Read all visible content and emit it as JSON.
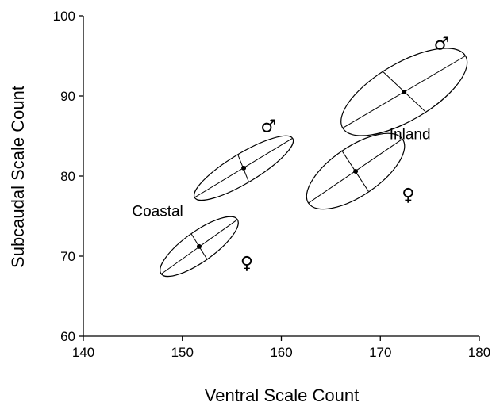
{
  "chart_data": {
    "type": "scatter",
    "xlabel": "Ventral Scale Count",
    "ylabel": "Subcaudal Scale Count",
    "xlim": [
      140,
      180
    ],
    "ylim": [
      60,
      100
    ],
    "xticks": [
      140,
      150,
      160,
      170,
      180
    ],
    "yticks": [
      60,
      70,
      80,
      90,
      100
    ],
    "x_tick_labels": [
      "140",
      "150",
      "160",
      "170",
      "180"
    ],
    "y_tick_labels": [
      "60",
      "70",
      "80",
      "90",
      "100"
    ],
    "grid": false,
    "series": [
      {
        "population": "Coastal",
        "sex_symbol": "♀",
        "centroid": [
          151.7,
          71.2
        ],
        "major_axis": [
          [
            147.9,
            67.8
          ],
          [
            155.6,
            74.6
          ]
        ],
        "minor_axis": [
          [
            150.9,
            72.8
          ],
          [
            152.5,
            69.6
          ]
        ]
      },
      {
        "population": "Coastal",
        "sex_symbol": "♂",
        "centroid": [
          156.2,
          81.0
        ],
        "major_axis": [
          [
            151.2,
            77.3
          ],
          [
            161.1,
            84.7
          ]
        ],
        "minor_axis": [
          [
            155.6,
            82.7
          ],
          [
            156.7,
            79.3
          ]
        ]
      },
      {
        "population": "Inland",
        "sex_symbol": "♀",
        "centroid": [
          167.5,
          80.6
        ],
        "major_axis": [
          [
            162.7,
            76.6
          ],
          [
            172.2,
            84.6
          ]
        ],
        "minor_axis": [
          [
            166.1,
            83.2
          ],
          [
            168.8,
            78.1
          ]
        ]
      },
      {
        "population": "Inland",
        "sex_symbol": "♂",
        "centroid": [
          172.4,
          90.5
        ],
        "major_axis": [
          [
            166.2,
            86.0
          ],
          [
            178.6,
            95.0
          ]
        ],
        "minor_axis": [
          [
            170.3,
            93.0
          ],
          [
            174.5,
            88.1
          ]
        ]
      }
    ],
    "annotations": [
      {
        "text": "Coastal",
        "x": 147.5,
        "y": 75.0
      },
      {
        "text": "Inland",
        "x": 173.0,
        "y": 84.6
      }
    ]
  }
}
